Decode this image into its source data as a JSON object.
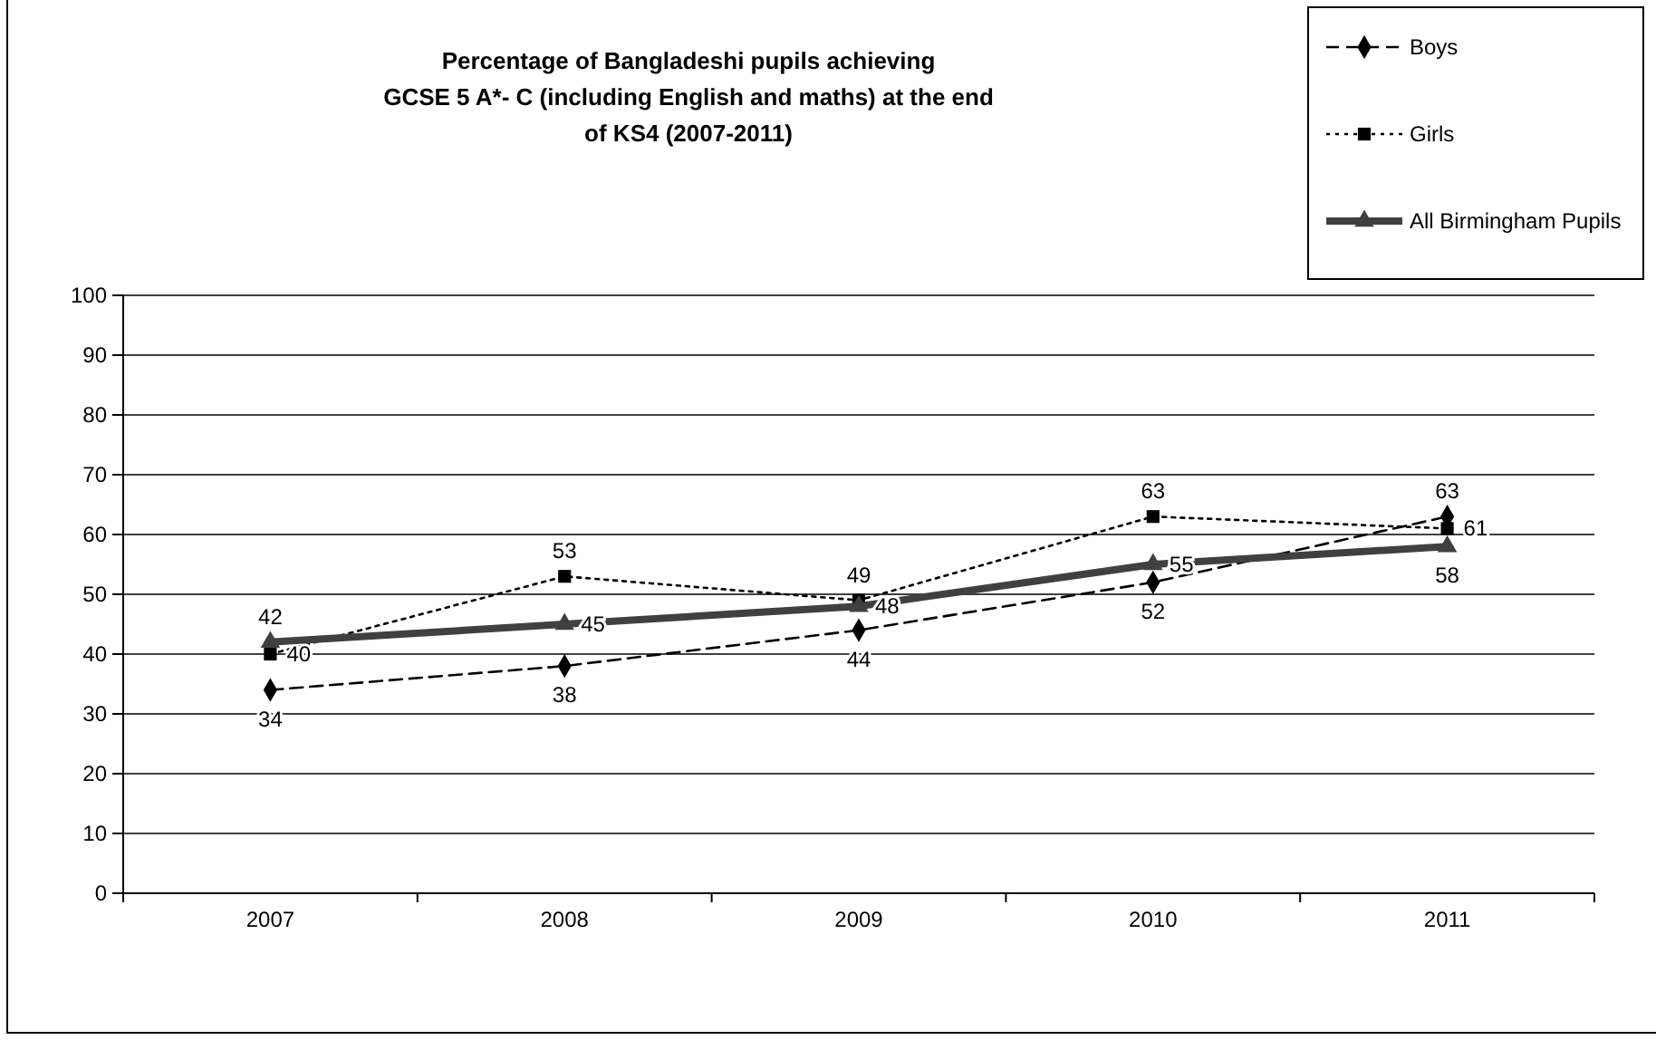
{
  "chart_data": {
    "type": "line",
    "title": "Percentage of Bangladeshi pupils achieving\nGCSE 5 A*- C (including English and maths) at the end\nof KS4 (2007-2011)",
    "categories": [
      "2007",
      "2008",
      "2009",
      "2010",
      "2011"
    ],
    "series": [
      {
        "name": "Boys",
        "color": "#000000",
        "values": [
          34,
          38,
          44,
          52,
          63
        ],
        "marker": "diamond",
        "line_style": "dashed"
      },
      {
        "name": "Girls",
        "color": "#000000",
        "values": [
          40,
          53,
          49,
          63,
          61
        ],
        "marker": "square",
        "line_style": "dotted"
      },
      {
        "name": "All Birmingham Pupils",
        "color": "#404040",
        "values": [
          42,
          45,
          48,
          55,
          58
        ],
        "marker": "triangle",
        "line_style": "solid"
      }
    ],
    "ylim": [
      0,
      100
    ],
    "yticks": [
      0,
      10,
      20,
      30,
      40,
      50,
      60,
      70,
      80,
      90,
      100
    ],
    "grid": "y",
    "legend": "top right",
    "data_labels": true
  }
}
